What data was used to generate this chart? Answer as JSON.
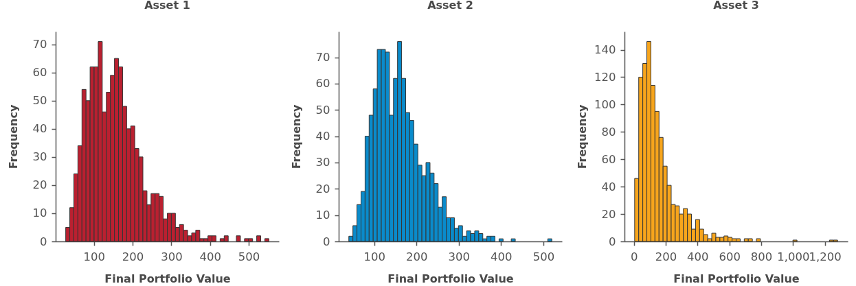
{
  "chart_data": [
    {
      "type": "histogram",
      "title": "Asset 1",
      "xlabel": "Final Portfolio Value",
      "ylabel": "Frequency",
      "color": "#ba2030",
      "bins": [
        27,
        37.5,
        48,
        58.5,
        69,
        79.5,
        90,
        100.5,
        111,
        121.5,
        132,
        142.5,
        153,
        163.5,
        174,
        184.5,
        195,
        205.5,
        216,
        226.5,
        237,
        247.5,
        258,
        268.5,
        279,
        289.5,
        300,
        310.5,
        321,
        331.5,
        342,
        352.5,
        363,
        373.5,
        384,
        394.5,
        405,
        415.5,
        426,
        436.5,
        447,
        457.5,
        468,
        478.5,
        489,
        499.5,
        510,
        520.5,
        531,
        541.5,
        552
      ],
      "values": [
        5,
        12,
        24,
        34,
        54,
        50,
        62,
        62,
        71,
        46,
        53,
        59,
        65,
        62,
        48,
        40,
        41,
        33,
        30,
        18,
        13,
        17,
        17,
        16,
        8,
        10,
        10,
        5,
        6,
        4,
        2,
        3,
        4,
        1,
        1,
        2,
        2,
        0,
        1,
        2,
        0,
        0,
        2,
        0,
        1,
        1,
        0,
        2,
        0,
        1
      ],
      "xlim": [
        1,
        578
      ],
      "xticks": [
        100,
        200,
        300,
        400,
        500
      ],
      "ylim": [
        0,
        74.55
      ],
      "yticks": [
        0,
        10,
        20,
        30,
        40,
        50,
        60,
        70
      ]
    },
    {
      "type": "histogram",
      "title": "Asset 2",
      "xlabel": "Final Portfolio Value",
      "ylabel": "Frequency",
      "color": "#0a8bcb",
      "bins": [
        40,
        49.6,
        59.2,
        68.8,
        78.4,
        88,
        97.6,
        107.2,
        116.8,
        126.4,
        136,
        145.6,
        155.2,
        164.8,
        174.4,
        184,
        193.6,
        203.2,
        212.8,
        222.4,
        232,
        241.6,
        251.2,
        260.8,
        270.4,
        280,
        289.6,
        299.2,
        308.8,
        318.4,
        328,
        337.6,
        347.2,
        356.8,
        366.4,
        376,
        385.6,
        395.2,
        404.8,
        414.4,
        424,
        433.6,
        443.2,
        452.8,
        462.4,
        472,
        481.6,
        491.2,
        500.8,
        510.4,
        520
      ],
      "values": [
        2,
        6,
        14,
        19,
        40,
        48,
        58,
        73,
        73,
        72,
        48,
        62,
        76,
        62,
        49,
        46,
        37,
        29,
        25,
        30,
        26,
        22,
        13,
        17,
        9,
        9,
        5,
        6,
        2,
        4,
        3,
        4,
        3,
        1,
        2,
        2,
        0,
        1,
        0,
        0,
        1,
        0,
        0,
        0,
        0,
        0,
        0,
        0,
        0,
        1
      ],
      "xlim": [
        16,
        544
      ],
      "xticks": [
        100,
        200,
        300,
        400,
        500
      ],
      "ylim": [
        0,
        79.8
      ],
      "yticks": [
        0,
        10,
        20,
        30,
        40,
        50,
        60,
        70
      ]
    },
    {
      "type": "histogram",
      "title": "Asset 3",
      "xlabel": "Final Portfolio Value",
      "ylabel": "Frequency",
      "color": "#f7a51c",
      "bins": [
        5,
        30.5,
        56,
        81.5,
        107,
        132.5,
        158,
        183.5,
        209,
        234.5,
        260,
        285.5,
        311,
        336.5,
        362,
        387.5,
        413,
        438.5,
        464,
        489.5,
        515,
        540.5,
        566,
        591.5,
        617,
        642.5,
        668,
        693.5,
        719,
        744.5,
        770,
        795.5,
        821,
        846.5,
        872,
        897.5,
        923,
        948.5,
        974,
        999.5,
        1025,
        1050.5,
        1076,
        1101.5,
        1127,
        1152.5,
        1178,
        1203.5,
        1229,
        1254.5,
        1280
      ],
      "values": [
        46,
        120,
        130,
        146,
        114,
        95,
        76,
        55,
        41,
        27,
        26,
        20,
        24,
        20,
        9,
        16,
        9,
        5,
        2,
        6,
        3,
        3,
        4,
        3,
        2,
        2,
        0,
        2,
        2,
        0,
        2,
        0,
        0,
        0,
        0,
        0,
        0,
        0,
        0,
        1,
        0,
        0,
        0,
        0,
        0,
        0,
        0,
        0,
        1,
        1
      ],
      "xlim": [
        -59,
        1344
      ],
      "xticks": [
        0,
        200,
        400,
        600,
        800,
        {
          "value": 1000,
          "label": "1,000"
        },
        {
          "value": 1200,
          "label": "1,200"
        }
      ],
      "ylim": [
        0,
        153.3
      ],
      "yticks": [
        0,
        20,
        40,
        60,
        80,
        100,
        120,
        140
      ]
    }
  ]
}
